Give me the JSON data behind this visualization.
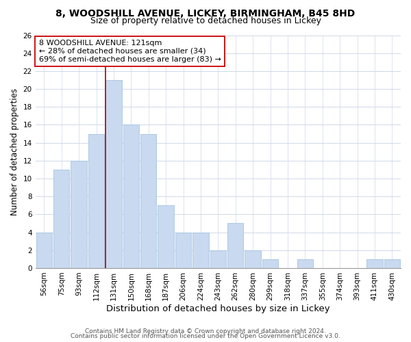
{
  "title1": "8, WOODSHILL AVENUE, LICKEY, BIRMINGHAM, B45 8HD",
  "title2": "Size of property relative to detached houses in Lickey",
  "xlabel": "Distribution of detached houses by size in Lickey",
  "ylabel": "Number of detached properties",
  "bar_labels": [
    "56sqm",
    "75sqm",
    "93sqm",
    "112sqm",
    "131sqm",
    "150sqm",
    "168sqm",
    "187sqm",
    "206sqm",
    "224sqm",
    "243sqm",
    "262sqm",
    "280sqm",
    "299sqm",
    "318sqm",
    "337sqm",
    "355sqm",
    "374sqm",
    "393sqm",
    "411sqm",
    "430sqm"
  ],
  "bar_values": [
    4,
    11,
    12,
    15,
    21,
    16,
    15,
    7,
    4,
    4,
    2,
    5,
    2,
    1,
    0,
    1,
    0,
    0,
    0,
    1,
    1
  ],
  "bar_color": "#c8d9f0",
  "bar_edgecolor": "#a8c4e0",
  "grid_color": "#d0d8e8",
  "vline_color": "#aa0000",
  "annotation_text": "8 WOODSHILL AVENUE: 121sqm\n← 28% of detached houses are smaller (34)\n69% of semi-detached houses are larger (83) →",
  "annotation_box_edgecolor": "#cc0000",
  "annotation_box_facecolor": "#ffffff",
  "ylim": [
    0,
    26
  ],
  "yticks": [
    0,
    2,
    4,
    6,
    8,
    10,
    12,
    14,
    16,
    18,
    20,
    22,
    24,
    26
  ],
  "footer1": "Contains HM Land Registry data © Crown copyright and database right 2024.",
  "footer2": "Contains public sector information licensed under the Open Government Licence v3.0.",
  "title1_fontsize": 10,
  "title2_fontsize": 9,
  "xlabel_fontsize": 9.5,
  "ylabel_fontsize": 8.5,
  "tick_fontsize": 7.5,
  "footer_fontsize": 6.5,
  "annotation_fontsize": 8
}
